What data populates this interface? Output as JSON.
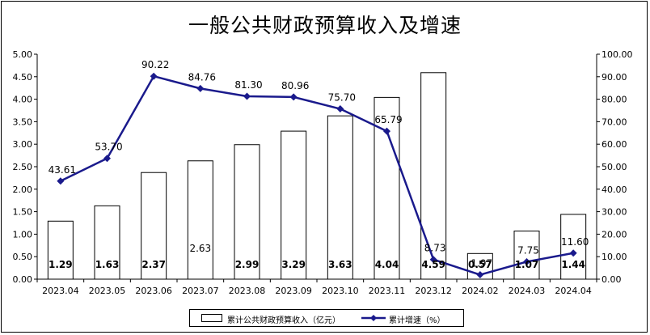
{
  "chart_data": {
    "type": "bar+line",
    "title": "一般公共财政预算收入及增速",
    "categories": [
      "2023.04",
      "2023.05",
      "2023.06",
      "2023.07",
      "2023.08",
      "2023.09",
      "2023.10",
      "2023.11",
      "2023.12",
      "2024.02",
      "2024.03",
      "2024.04"
    ],
    "series": [
      {
        "name": "累计公共财政预算收入（亿元）",
        "type": "bar",
        "axis": "left",
        "values": [
          1.29,
          1.63,
          2.37,
          2.63,
          2.99,
          3.29,
          3.63,
          4.04,
          4.59,
          0.57,
          1.07,
          1.44
        ],
        "labels": [
          "1.29",
          "1.63",
          "2.37",
          "2.63",
          "2.99",
          "3.29",
          "3.63",
          "4.04",
          "4.59",
          "0.57",
          "1.07",
          "1.44"
        ]
      },
      {
        "name": "累计增速（%）",
        "type": "line",
        "axis": "right",
        "color": "#1a1a8c",
        "values": [
          43.61,
          53.7,
          90.22,
          84.76,
          81.3,
          80.96,
          75.7,
          65.79,
          8.73,
          1.97,
          7.75,
          11.6
        ],
        "labels": [
          "43.61",
          "53.70",
          "90.22",
          "84.76",
          "81.30",
          "80.96",
          "75.70",
          "65.79",
          "8.73",
          "1.97",
          "7.75",
          "11.60"
        ]
      }
    ],
    "left_axis": {
      "ylim": [
        0,
        5
      ],
      "ticks": [
        "0.00",
        "0.50",
        "1.00",
        "1.50",
        "2.00",
        "2.50",
        "3.00",
        "3.50",
        "4.00",
        "4.50",
        "5.00"
      ]
    },
    "right_axis": {
      "ylim": [
        0,
        100
      ],
      "ticks": [
        "0.00",
        "10.00",
        "20.00",
        "30.00",
        "40.00",
        "50.00",
        "60.00",
        "70.00",
        "80.00",
        "90.00",
        "100.00"
      ]
    },
    "grid": false,
    "legend_position": "bottom"
  },
  "legend": {
    "bar_label": "累计公共财政预算收入（亿元）",
    "line_label": "累计增速（%）"
  }
}
